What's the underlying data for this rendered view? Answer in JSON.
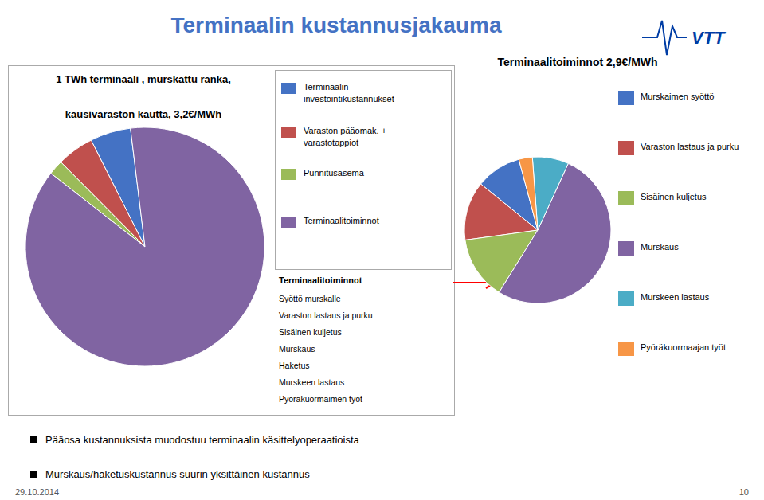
{
  "title": "Terminaalin kustannusjakauma",
  "annotations": {
    "logo": "VTT",
    "footer": [
      "Pääosa kustannuksista muodostuu terminaalin käsittelyoperaatioista",
      "Murskaus/haketuskustannus suurin yksittäinen kustannus"
    ],
    "date": "29.10.2014",
    "page": "10"
  },
  "chart_data": [
    {
      "type": "pie",
      "title": "1 TWh terminaali , murskattu ranka,",
      "subtitle": "kausivaraston kautta, 3,2€/MWh",
      "categories": [
        "Terminaalin\ninvestointikustannukset",
        "Varaston pääomak. +\nvarastotappiot",
        "Punnitusasema",
        "Terminaalitoiminnot"
      ],
      "values": [
        5.5,
        5.0,
        2.0,
        87.5
      ],
      "colors": [
        "#4472c4",
        "#c0504d",
        "#9bbb59",
        "#8064a2"
      ],
      "legend": "right",
      "annotations": {
        "title": "Terminaalitoiminnot",
        "items": [
          "Syöttö murskalle",
          "Varaston lastaus ja purku",
          "Sisäinen kuljetus",
          "Murskaus",
          "Haketus",
          "Murskeen lastaus",
          "Pyöräkuormaimen työt"
        ]
      }
    },
    {
      "type": "pie",
      "title": "Terminaalitoiminnot 2,9€/MWh",
      "categories": [
        "Murskaimen syöttö",
        "Varaston lastaus ja purku",
        "Sisäinen kuljetus",
        "Murskaus",
        "Murskeen lastaus",
        "Pyöräkuormaajan työt"
      ],
      "values": [
        10,
        13,
        14,
        52,
        8,
        3
      ],
      "colors": [
        "#4472c4",
        "#c0504d",
        "#9bbb59",
        "#8064a2",
        "#4bacc6",
        "#f79646"
      ],
      "legend": "right"
    }
  ]
}
